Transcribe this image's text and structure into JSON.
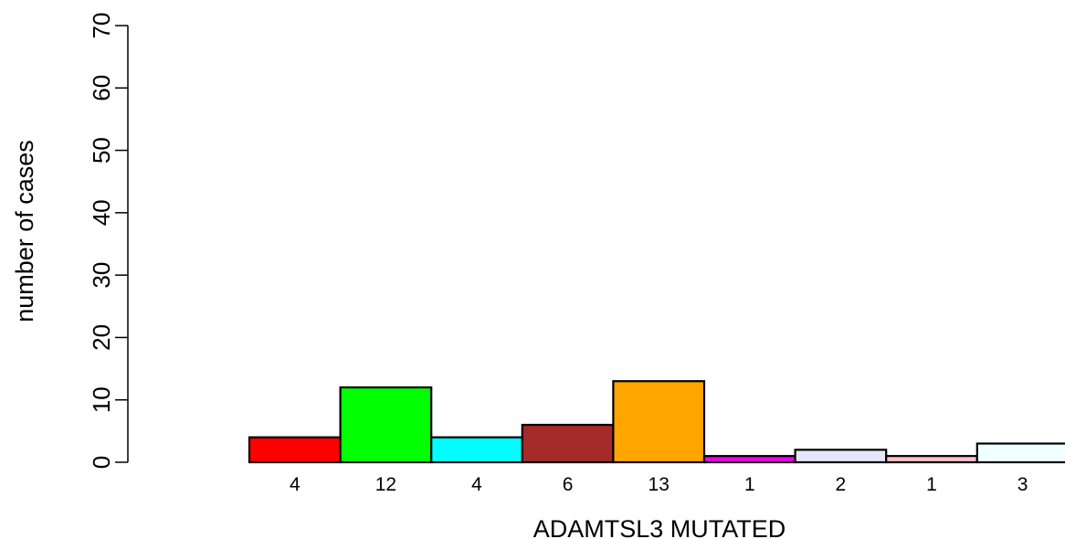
{
  "chart_data": {
    "type": "bar",
    "title": "",
    "xlabel": "ADAMTSL3 MUTATED",
    "ylabel": "number of cases",
    "ylim": [
      0,
      70
    ],
    "yticks": [
      0,
      10,
      20,
      30,
      40,
      50,
      60,
      70
    ],
    "categories": [
      "4",
      "12",
      "4",
      "6",
      "13",
      "1",
      "2",
      "1",
      "3"
    ],
    "values": [
      4,
      12,
      4,
      6,
      13,
      1,
      2,
      1,
      3
    ],
    "colors": [
      "#ff0000",
      "#00ff00",
      "#00ffff",
      "#a52a2a",
      "#ffa500",
      "#ee00ee",
      "#e6e6fa",
      "#ffc0cb",
      "#f0ffff"
    ],
    "grid": false,
    "legend": "none"
  }
}
